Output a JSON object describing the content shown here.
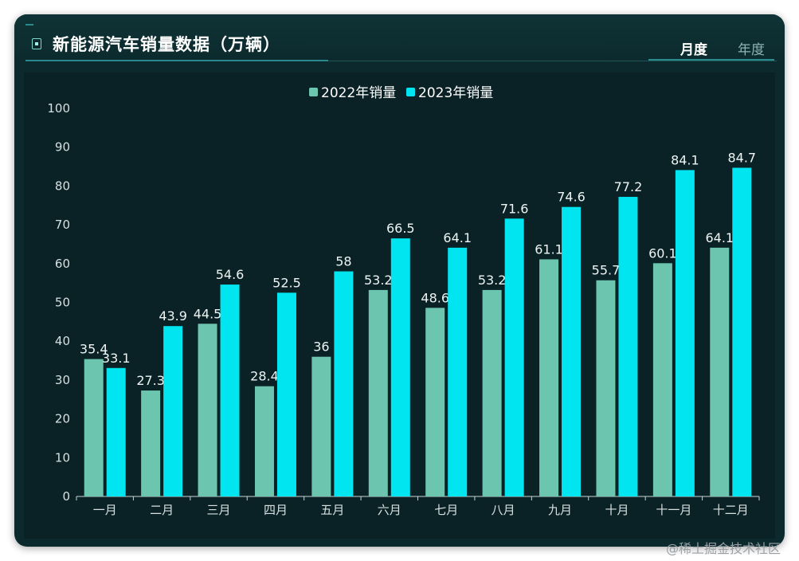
{
  "header": {
    "title": "新能源汽车销量数据（万辆）",
    "tabs": [
      {
        "label": "月度",
        "active": true
      },
      {
        "label": "年度",
        "active": false
      }
    ]
  },
  "watermark": "@稀土掘金技术社区",
  "colors": {
    "series_2022": "#6cc5ae",
    "series_2023": "#00e5ef",
    "panel_bg": "#0c2a2d",
    "axis_text": "#d6e0e0"
  },
  "chart_data": {
    "type": "bar",
    "categories": [
      "一月",
      "二月",
      "三月",
      "四月",
      "五月",
      "六月",
      "七月",
      "八月",
      "九月",
      "十月",
      "十一月",
      "十二月"
    ],
    "series": [
      {
        "name": "2022年销量",
        "values": [
          35.4,
          27.3,
          44.5,
          28.4,
          36,
          53.2,
          48.6,
          53.2,
          61.1,
          55.7,
          60.1,
          64.1
        ]
      },
      {
        "name": "2023年销量",
        "values": [
          33.1,
          43.9,
          54.6,
          52.5,
          58,
          66.5,
          64.1,
          71.6,
          74.6,
          77.2,
          84.1,
          84.7
        ]
      }
    ],
    "ylim": [
      0,
      100
    ],
    "yticks": [
      0,
      10,
      20,
      30,
      40,
      50,
      60,
      70,
      80,
      90,
      100
    ],
    "legend_position": "top-center",
    "grid": false
  }
}
